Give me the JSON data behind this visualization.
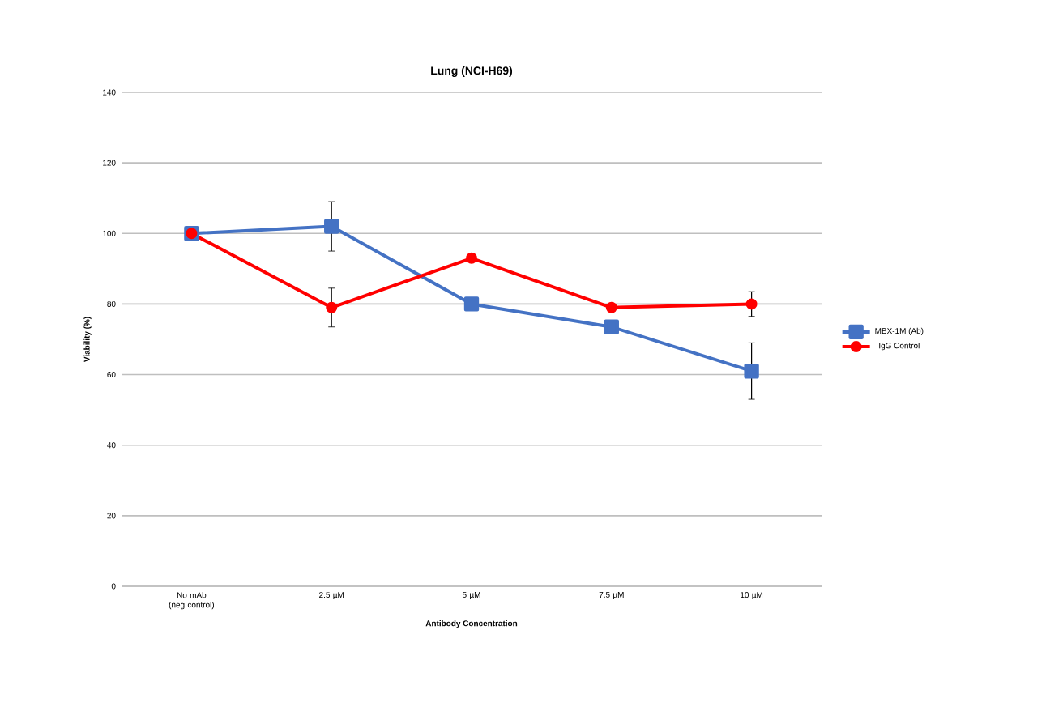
{
  "chart_data": {
    "type": "line",
    "title": "Lung (NCI-H69)",
    "xlabel": "Antibody Concentration",
    "ylabel": "Viability (%)",
    "categories": [
      "No mAb (neg control)",
      "2.5 µM",
      "5 µM",
      "7.5 µM",
      "10 µM"
    ],
    "series": [
      {
        "name": "MBX-1M (Ab)",
        "color": "#4472c4",
        "marker": "square",
        "values": [
          100,
          102,
          80,
          73.5,
          61
        ],
        "errors": [
          null,
          7,
          null,
          null,
          8
        ]
      },
      {
        "name": "IgG Control",
        "color": "#ff0000",
        "marker": "circle",
        "values": [
          100,
          79,
          93,
          79,
          80
        ],
        "errors": [
          null,
          5.5,
          null,
          null,
          3.5
        ]
      }
    ],
    "ylim": [
      0,
      140
    ],
    "yticks": [
      0,
      20,
      40,
      60,
      80,
      100,
      120,
      140
    ],
    "grid": "y",
    "legend": "right"
  }
}
